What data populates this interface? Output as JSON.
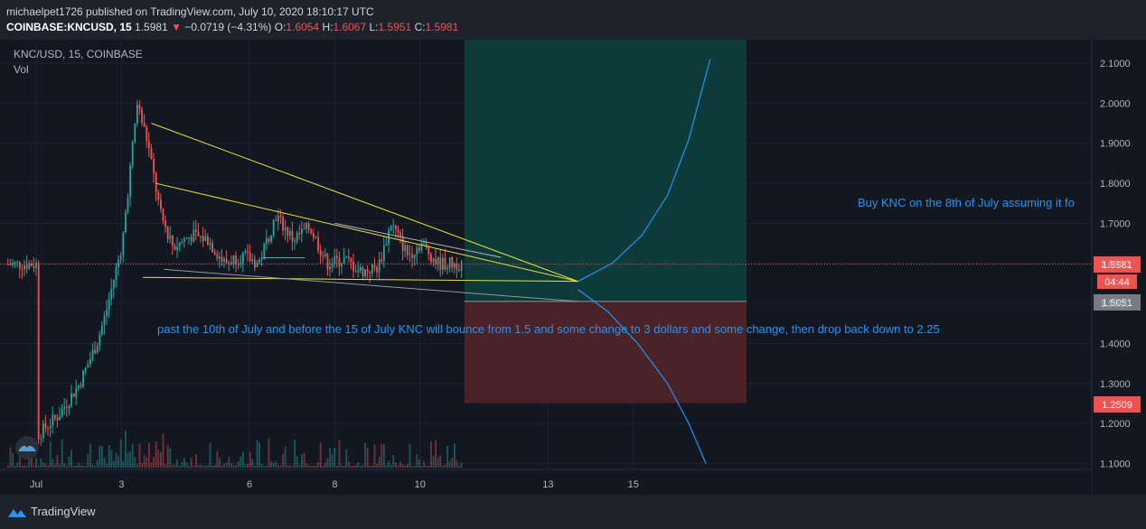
{
  "header": {
    "publisher_line": "michaelpet1726 published on TradingView.com, July 10, 2020 18:10:17 UTC",
    "symbol": "COINBASE:KNCUSD, 15",
    "last": "1.5981",
    "change": "−0.0719 (−4.31%)",
    "o_label": "O:",
    "o_value": "1.6054",
    "h_label": "H:",
    "h_value": "1.6067",
    "l_label": "L:",
    "l_value": "1.5951",
    "c_label": "C:",
    "c_value": "1.5981"
  },
  "legend": {
    "title": "KNC/USD, 15, COINBASE",
    "vol": "Vol"
  },
  "annotations": {
    "buy_text": "Buy KNC on the 8th of July assuming it fo",
    "forecast_text": "past the 10th of July and before the 15 of July KNC will bounce from 1.5 and some change to 3 dollars and some change, then drop back down to 2.25"
  },
  "price_labels": {
    "current": "1.5981",
    "countdown": "04:44",
    "entry": "1.5051",
    "stop": "1.2509"
  },
  "footer": {
    "brand": "TradingView"
  },
  "colors": {
    "background": "#131722",
    "up": "#26a69a",
    "down": "#ef5350",
    "trendline": "#e8e337",
    "projection": "#2196f3",
    "profit_zone": "#0f3a3a",
    "loss_zone": "#4a2227"
  },
  "chart_data": {
    "type": "candlestick",
    "symbol": "KNC/USD, 15, COINBASE",
    "y_ticks": [
      1.1,
      1.2,
      1.3,
      1.4,
      1.5,
      1.6,
      1.7,
      1.8,
      1.9,
      2.0,
      2.1
    ],
    "x_ticks": [
      "Jul",
      "3",
      "6",
      "8",
      "10",
      "13",
      "15"
    ],
    "ylim": [
      1.08,
      2.16
    ],
    "current_price": 1.5981,
    "price_path": [
      {
        "day": 1.0,
        "price": 1.17
      },
      {
        "day": 1.5,
        "price": 1.22
      },
      {
        "day": 2.0,
        "price": 1.3
      },
      {
        "day": 2.4,
        "price": 1.4
      },
      {
        "day": 2.6,
        "price": 1.47
      },
      {
        "day": 2.8,
        "price": 1.56
      },
      {
        "day": 3.0,
        "price": 1.65
      },
      {
        "day": 3.2,
        "price": 1.85
      },
      {
        "day": 3.35,
        "price": 2.0
      },
      {
        "day": 3.6,
        "price": 1.9
      },
      {
        "day": 3.9,
        "price": 1.72
      },
      {
        "day": 4.2,
        "price": 1.64
      },
      {
        "day": 4.6,
        "price": 1.67
      },
      {
        "day": 5.0,
        "price": 1.66
      },
      {
        "day": 5.4,
        "price": 1.6
      },
      {
        "day": 5.8,
        "price": 1.62
      },
      {
        "day": 6.2,
        "price": 1.6
      },
      {
        "day": 6.6,
        "price": 1.72
      },
      {
        "day": 7.0,
        "price": 1.66
      },
      {
        "day": 7.4,
        "price": 1.69
      },
      {
        "day": 7.8,
        "price": 1.6
      },
      {
        "day": 8.2,
        "price": 1.61
      },
      {
        "day": 8.6,
        "price": 1.58
      },
      {
        "day": 9.0,
        "price": 1.59
      },
      {
        "day": 9.3,
        "price": 1.7
      },
      {
        "day": 9.7,
        "price": 1.62
      },
      {
        "day": 10.0,
        "price": 1.65
      },
      {
        "day": 10.4,
        "price": 1.6
      },
      {
        "day": 10.8,
        "price": 1.5981
      }
    ],
    "trendlines": [
      {
        "from": {
          "day": 3.7,
          "price": 1.95
        },
        "to": {
          "day": 13.7,
          "price": 1.555
        }
      },
      {
        "from": {
          "day": 3.8,
          "price": 1.8
        },
        "to": {
          "day": 13.7,
          "price": 1.555
        }
      },
      {
        "from": {
          "day": 3.5,
          "price": 1.565
        },
        "to": {
          "day": 13.7,
          "price": 1.555
        }
      },
      {
        "from": {
          "day": 8.0,
          "price": 1.7
        },
        "to": {
          "day": 11.9,
          "price": 1.615
        }
      }
    ],
    "projection": [
      {
        "day": 13.7,
        "price": 1.555
      },
      {
        "day": 14.5,
        "price": 1.6
      },
      {
        "day": 15.2,
        "price": 1.67
      },
      {
        "day": 15.8,
        "price": 1.77
      },
      {
        "day": 16.3,
        "price": 1.91
      },
      {
        "day": 16.6,
        "price": 2.03
      },
      {
        "day": 16.8,
        "price": 2.11
      }
    ],
    "projection_drop": [
      {
        "day": 13.7,
        "price": 1.535
      },
      {
        "day": 14.4,
        "price": 1.48
      },
      {
        "day": 15.1,
        "price": 1.4
      },
      {
        "day": 15.8,
        "price": 1.3
      },
      {
        "day": 16.3,
        "price": 1.2
      },
      {
        "day": 16.7,
        "price": 1.1
      }
    ],
    "long_position": {
      "start_day": 12.0,
      "end_day": 18.5,
      "entry": 1.5051,
      "target": 2.16,
      "stop": 1.2509
    }
  }
}
